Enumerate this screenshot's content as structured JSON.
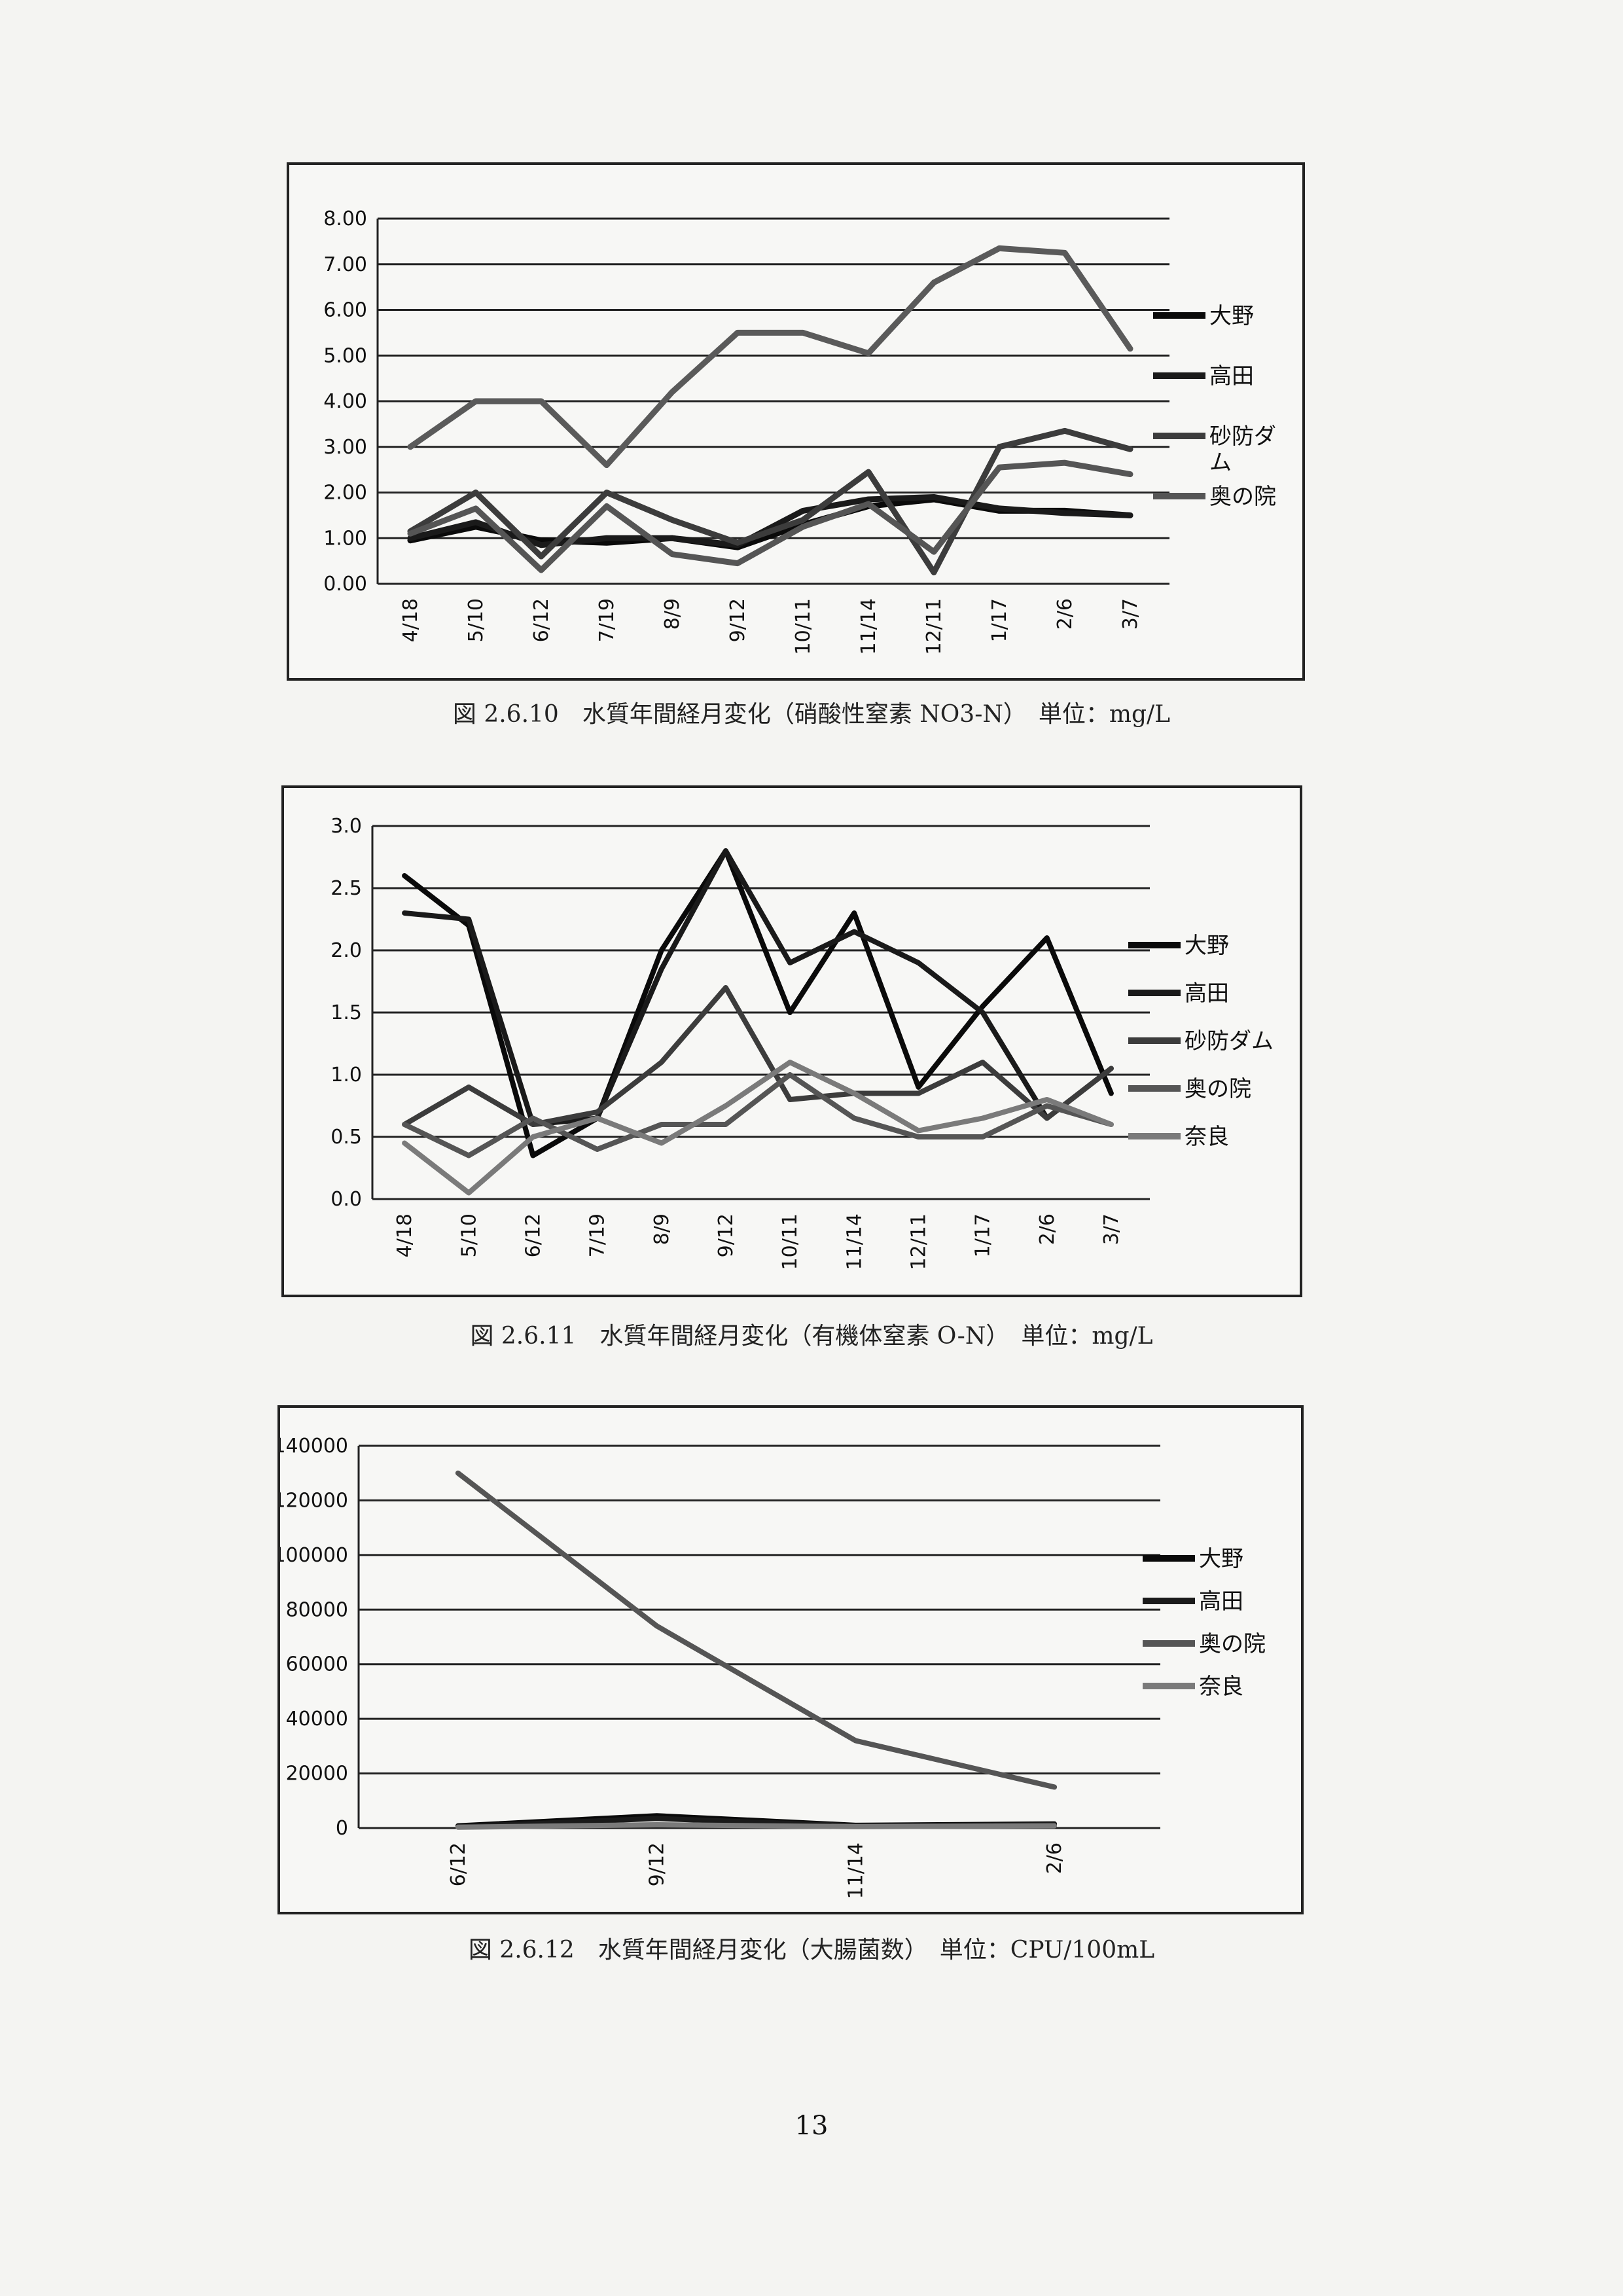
{
  "charts": [
    {
      "caption": "図 2.6.10　水質年間経月変化（硝酸性窒素 NO3-N）　単位：mg/L",
      "chart_data": {
        "type": "line",
        "categories": [
          "4/18",
          "5/10",
          "6/12",
          "7/19",
          "8/9",
          "9/12",
          "10/11",
          "11/14",
          "12/11",
          "1/17",
          "2/6",
          "3/7"
        ],
        "ylim": [
          0,
          8
        ],
        "yticks": [
          "0.00",
          "1.00",
          "2.00",
          "3.00",
          "4.00",
          "5.00",
          "6.00",
          "7.00",
          "8.00"
        ],
        "grid": true,
        "legend_position": "right",
        "series": [
          {
            "name": "大野",
            "color": "#0a0a0a",
            "values": [
              0.95,
              1.25,
              0.95,
              0.9,
              1.0,
              0.8,
              1.3,
              1.7,
              1.85,
              1.6,
              1.6,
              1.5
            ]
          },
          {
            "name": "高田",
            "color": "#1a1a1a",
            "values": [
              1.0,
              1.35,
              0.85,
              1.0,
              1.0,
              0.85,
              1.6,
              1.85,
              1.9,
              1.65,
              1.55,
              1.5
            ]
          },
          {
            "name": "砂防ダム",
            "color": "#3c3c3c",
            "values": [
              1.15,
              2.0,
              0.6,
              2.0,
              1.4,
              0.9,
              1.4,
              2.45,
              0.25,
              3.0,
              3.35,
              2.95
            ]
          },
          {
            "name": "奥の院",
            "color": "#555555",
            "values": [
              1.1,
              1.65,
              0.3,
              1.7,
              0.65,
              0.45,
              1.25,
              1.75,
              0.7,
              2.55,
              2.65,
              2.4
            ]
          },
          {
            "name": "",
            "color": "#5a5a5a",
            "values": [
              3.0,
              4.0,
              4.0,
              2.6,
              4.2,
              5.5,
              5.5,
              5.05,
              6.6,
              7.35,
              7.25,
              5.15
            ]
          }
        ],
        "legend": [
          "大野",
          "高田",
          "砂防ダ\nム",
          "奥の院"
        ]
      }
    },
    {
      "caption": "図 2.6.11　水質年間経月変化（有機体窒素 O-N）　単位：mg/L",
      "chart_data": {
        "type": "line",
        "categories": [
          "4/18",
          "5/10",
          "6/12",
          "7/19",
          "8/9",
          "9/12",
          "10/11",
          "11/14",
          "12/11",
          "1/17",
          "2/6",
          "3/7"
        ],
        "ylim": [
          0,
          3
        ],
        "yticks": [
          "0.0",
          "0.5",
          "1.0",
          "1.5",
          "2.0",
          "2.5",
          "3.0"
        ],
        "grid": true,
        "legend_position": "right",
        "series": [
          {
            "name": "大野",
            "color": "#0a0a0a",
            "values": [
              2.6,
              2.2,
              0.35,
              0.65,
              2.0,
              2.8,
              1.5,
              2.3,
              0.9,
              1.55,
              2.1,
              0.85
            ]
          },
          {
            "name": "高田",
            "color": "#1a1a1a",
            "values": [
              2.3,
              2.25,
              0.6,
              0.65,
              1.85,
              2.8,
              1.9,
              2.15,
              1.9,
              1.5,
              0.65,
              1.05
            ]
          },
          {
            "name": "砂防ダム",
            "color": "#3c3c3c",
            "values": [
              0.6,
              0.9,
              0.6,
              0.7,
              1.1,
              1.7,
              0.8,
              0.85,
              0.85,
              1.1,
              0.65,
              1.05
            ]
          },
          {
            "name": "奥の院",
            "color": "#555555",
            "values": [
              0.6,
              0.35,
              0.65,
              0.4,
              0.6,
              0.6,
              1.0,
              0.65,
              0.5,
              0.5,
              0.75,
              0.6
            ]
          },
          {
            "name": "奈良",
            "color": "#7a7a7a",
            "values": [
              0.45,
              0.05,
              0.5,
              0.65,
              0.45,
              0.75,
              1.1,
              0.85,
              0.55,
              0.65,
              0.8,
              0.6
            ]
          }
        ],
        "legend": [
          "大野",
          "高田",
          "砂防ダム",
          "奥の院",
          "奈良"
        ]
      }
    },
    {
      "caption": "図 2.6.12　水質年間経月変化（大腸菌数）　単位：CPU/100mL",
      "chart_data": {
        "type": "line",
        "categories": [
          "6/12",
          "9/12",
          "11/14",
          "2/6"
        ],
        "ylim": [
          0,
          140000
        ],
        "yticks": [
          "0",
          "20000",
          "40000",
          "60000",
          "80000",
          "100000",
          "120000",
          "140000"
        ],
        "grid": true,
        "legend_position": "right",
        "series": [
          {
            "name": "大野",
            "color": "#0a0a0a",
            "values": [
              800,
              4500,
              1000,
              1500
            ]
          },
          {
            "name": "高田",
            "color": "#1a1a1a",
            "values": [
              500,
              3500,
              800,
              1200
            ]
          },
          {
            "name": "奥の院",
            "color": "#555555",
            "values": [
              130000,
              74000,
              32000,
              15000
            ]
          },
          {
            "name": "奈良",
            "color": "#7a7a7a",
            "values": [
              300,
              1200,
              500,
              800
            ]
          }
        ],
        "legend": [
          "大野",
          "高田",
          "奥の院",
          "奈良"
        ]
      }
    }
  ],
  "page_number": "13"
}
